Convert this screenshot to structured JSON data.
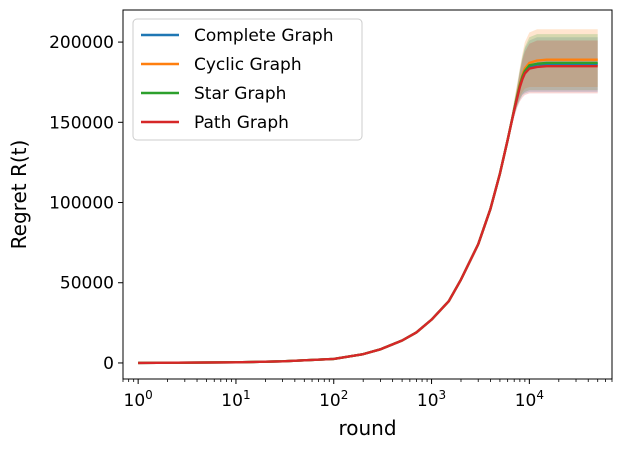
{
  "chart_data": {
    "type": "line",
    "title": "",
    "xlabel": "round",
    "ylabel": "Regret R(t)",
    "xscale": "log",
    "xlim": [
      0.7,
      70000
    ],
    "ylim": [
      -10000,
      220000
    ],
    "yticks": [
      0,
      50000,
      100000,
      150000,
      200000
    ],
    "ytick_labels": [
      "0",
      "50000",
      "100000",
      "150000",
      "200000"
    ],
    "xticks": [
      1,
      10,
      100,
      1000,
      10000
    ],
    "xtick_labels": [
      {
        "base": "10",
        "exp": "0"
      },
      {
        "base": "10",
        "exp": "1"
      },
      {
        "base": "10",
        "exp": "2"
      },
      {
        "base": "10",
        "exp": "3"
      },
      {
        "base": "10",
        "exp": "4"
      }
    ],
    "grid": false,
    "legend": "upper-left",
    "x": [
      1,
      10,
      30,
      100,
      200,
      300,
      500,
      700,
      1000,
      1500,
      2000,
      3000,
      4000,
      5000,
      6000,
      7000,
      7500,
      8000,
      8500,
      9000,
      10000,
      12000,
      15000,
      20000,
      30000,
      50000
    ],
    "series": [
      {
        "name": "Complete Graph",
        "color": "#1f77b4",
        "values": [
          0,
          400,
          1000,
          2500,
          5500,
          8500,
          14000,
          19000,
          27000,
          38500,
          52000,
          74000,
          96000,
          118000,
          139000,
          158000,
          166000,
          173000,
          178000,
          181500,
          184500,
          186000,
          186000,
          186000,
          186000,
          186000
        ],
        "band_low": [
          0,
          400,
          1000,
          2500,
          5500,
          8500,
          14000,
          19000,
          27000,
          38500,
          52000,
          74000,
          96000,
          118000,
          138000,
          154000,
          160000,
          164000,
          167000,
          168000,
          169000,
          169000,
          169000,
          169000,
          169000,
          169000
        ],
        "band_high": [
          0,
          400,
          1000,
          2500,
          5500,
          8500,
          14000,
          19000,
          27000,
          38500,
          52000,
          74000,
          96000,
          118000,
          140000,
          162000,
          172000,
          182000,
          190000,
          196000,
          201000,
          203000,
          203000,
          203000,
          203000,
          203000
        ]
      },
      {
        "name": "Cyclic Graph",
        "color": "#ff7f0e",
        "values": [
          0,
          400,
          1000,
          2500,
          5500,
          8500,
          14000,
          19000,
          27000,
          38500,
          52000,
          74000,
          96000,
          118000,
          139000,
          158000,
          166500,
          174000,
          179500,
          183500,
          187000,
          188500,
          189000,
          189000,
          189000,
          189000
        ],
        "band_low": [
          0,
          400,
          1000,
          2500,
          5500,
          8500,
          14000,
          19000,
          27000,
          38500,
          52000,
          74000,
          96000,
          118000,
          138000,
          155000,
          161000,
          166000,
          169000,
          171000,
          172000,
          172000,
          172000,
          172000,
          172000,
          172000
        ],
        "band_high": [
          0,
          400,
          1000,
          2500,
          5500,
          8500,
          14000,
          19000,
          27000,
          38500,
          52000,
          74000,
          96000,
          118000,
          141000,
          164000,
          174000,
          184000,
          193000,
          200000,
          206000,
          208000,
          208000,
          208000,
          208000,
          208000
        ]
      },
      {
        "name": "Star Graph",
        "color": "#2ca02c",
        "values": [
          0,
          400,
          1000,
          2500,
          5500,
          8500,
          14000,
          19000,
          27000,
          38500,
          52000,
          74000,
          96000,
          118000,
          139000,
          158000,
          166000,
          173000,
          178500,
          182000,
          185500,
          186500,
          187000,
          187000,
          187000,
          187000
        ],
        "band_low": [
          0,
          400,
          1000,
          2500,
          5500,
          8500,
          14000,
          19000,
          27000,
          38500,
          52000,
          74000,
          96000,
          118000,
          138000,
          154000,
          160000,
          164500,
          167500,
          169000,
          170000,
          170000,
          170000,
          170000,
          170000,
          170000
        ],
        "band_high": [
          0,
          400,
          1000,
          2500,
          5500,
          8500,
          14000,
          19000,
          27000,
          38500,
          52000,
          74000,
          96000,
          118000,
          140000,
          163000,
          173000,
          183000,
          191000,
          197000,
          203000,
          205000,
          205000,
          205000,
          205000,
          205000
        ]
      },
      {
        "name": "Path Graph",
        "color": "#d62728",
        "values": [
          0,
          400,
          1000,
          2500,
          5500,
          8500,
          14000,
          19000,
          27000,
          38500,
          52000,
          74000,
          96000,
          118000,
          139000,
          157500,
          165000,
          172000,
          177000,
          180500,
          183500,
          184500,
          185000,
          185000,
          185000,
          185000
        ],
        "band_low": [
          0,
          400,
          1000,
          2500,
          5500,
          8500,
          14000,
          19000,
          27000,
          38500,
          52000,
          74000,
          96000,
          118000,
          138000,
          153000,
          159000,
          163000,
          165500,
          167000,
          168000,
          168000,
          168000,
          168000,
          168000,
          168000
        ],
        "band_high": [
          0,
          400,
          1000,
          2500,
          5500,
          8500,
          14000,
          19000,
          27000,
          38500,
          52000,
          74000,
          96000,
          118000,
          140000,
          161000,
          171000,
          181000,
          189000,
          194000,
          199000,
          201000,
          201000,
          201000,
          201000,
          201000
        ]
      }
    ]
  }
}
